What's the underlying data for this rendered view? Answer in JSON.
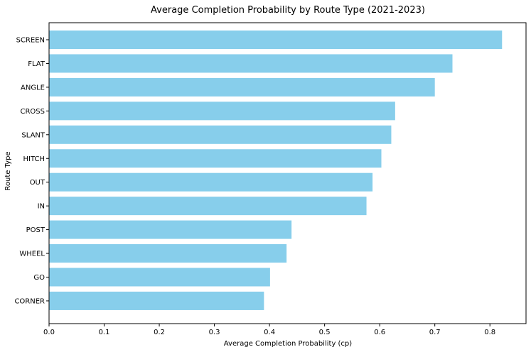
{
  "chart_data": {
    "type": "bar",
    "orientation": "horizontal",
    "title": "Average Completion Probability by Route Type (2021-2023)",
    "xlabel": "Average Completion Probability (cp)",
    "ylabel": "Route Type",
    "categories": [
      "SCREEN",
      "FLAT",
      "ANGLE",
      "CROSS",
      "SLANT",
      "HITCH",
      "OUT",
      "IN",
      "POST",
      "WHEEL",
      "GO",
      "CORNER"
    ],
    "values": [
      0.822,
      0.732,
      0.7,
      0.628,
      0.621,
      0.603,
      0.587,
      0.576,
      0.44,
      0.431,
      0.401,
      0.39
    ],
    "xlim": [
      0,
      0.8655
    ],
    "xticks": [
      "0.0",
      "0.1",
      "0.2",
      "0.3",
      "0.4",
      "0.5",
      "0.6",
      "0.7",
      "0.8"
    ],
    "bar_color": "#87CEEB",
    "grid": false
  }
}
